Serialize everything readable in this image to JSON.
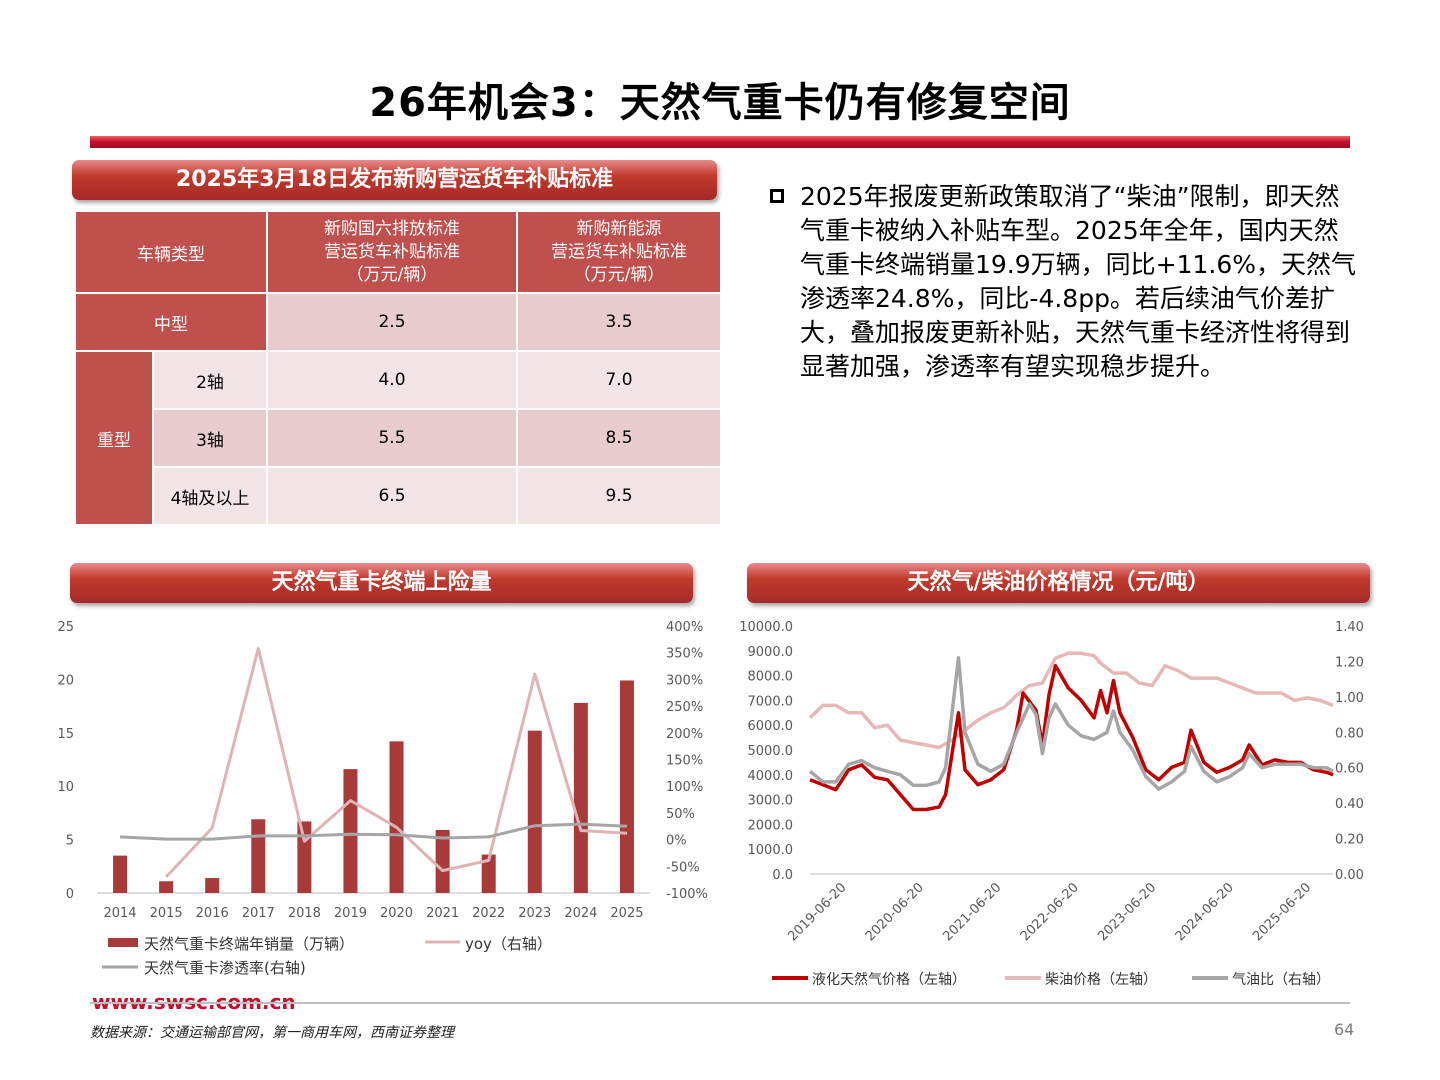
{
  "title": "26年机会3：天然气重卡仍有修复空间",
  "table_section": {
    "title": "2025年3月18日发布新购营运货车补贴标准",
    "header": {
      "col1": "车辆类型",
      "col2": [
        "新购国六排放标准",
        "营运货车补贴标准",
        "（万元/辆）"
      ],
      "col3": [
        "新购新能源",
        "营运货车补贴标准",
        "（万元/辆）"
      ]
    },
    "medium": {
      "label": "中型",
      "v1": "2.5",
      "v2": "3.5"
    },
    "heavy": {
      "label": "重型",
      "rows": [
        {
          "axle": "2轴",
          "v1": "4.0",
          "v2": "7.0"
        },
        {
          "axle": "3轴",
          "v1": "5.5",
          "v2": "8.5"
        },
        {
          "axle": "4轴及以上",
          "v1": "6.5",
          "v2": "9.5"
        }
      ]
    }
  },
  "bullet_text": "2025年报废更新政策取消了“柴油”限制，即天然气重卡被纳入补贴车型。2025年全年，国内天然气重卡终端销量19.9万辆，同比+11.6%，天然气渗透率24.8%，同比-4.8pp。若后续油气价差扩大，叠加报废更新补贴，天然气重卡经济性将得到显著加强，渗透率有望实现稳步提升。",
  "left_chart_title": "天然气重卡终端上险量",
  "right_chart_title": "天然气/柴油价格情况（元/吨）",
  "chart_data": [
    {
      "type": "bar",
      "categories": [
        "2014",
        "2015",
        "2016",
        "2017",
        "2018",
        "2019",
        "2020",
        "2021",
        "2022",
        "2023",
        "2024",
        "2025"
      ],
      "series": [
        {
          "name": "天然气重卡终端年销量（万辆）",
          "axis": "left",
          "type": "bar",
          "color": "#a93a3a",
          "values": [
            3.5,
            1.1,
            1.4,
            6.9,
            6.7,
            11.6,
            14.2,
            5.9,
            3.6,
            15.2,
            17.8,
            19.9
          ]
        },
        {
          "name": "yoy（右轴）",
          "axis": "right",
          "type": "line",
          "color": "#e0b4b4",
          "values": [
            null,
            -70,
            22,
            358,
            -3,
            73,
            23,
            -58,
            -39,
            310,
            17,
            12
          ]
        },
        {
          "name": "天然气重卡渗透率(右轴)",
          "axis": "right",
          "type": "line",
          "color": "#a6a6a6",
          "values": [
            5,
            1,
            1,
            7,
            7,
            10,
            9,
            3,
            5,
            26,
            29,
            25
          ]
        }
      ],
      "ylim_left": [
        0,
        25
      ],
      "ylim_right": [
        -100,
        400
      ],
      "yticks_left": [
        "0",
        "5",
        "10",
        "15",
        "20",
        "25"
      ],
      "yticks_right": [
        "-100%",
        "-50%",
        "0%",
        "50%",
        "100%",
        "150%",
        "200%",
        "250%",
        "300%",
        "350%",
        "400%"
      ]
    },
    {
      "type": "line",
      "x_ticks": [
        "2019-06-20",
        "2020-06-20",
        "2021-06-20",
        "2022-06-20",
        "2023-06-20",
        "2024-06-20",
        "2025-06-20"
      ],
      "x_range": [
        "2019-01",
        "2025-10"
      ],
      "ylim_left": [
        0,
        10000
      ],
      "ylim_right": [
        0,
        1.4
      ],
      "yticks_left": [
        "0.0",
        "1000.0",
        "2000.0",
        "3000.0",
        "4000.0",
        "5000.0",
        "6000.0",
        "7000.0",
        "8000.0",
        "9000.0",
        "10000.0"
      ],
      "yticks_right": [
        "0.00",
        "0.20",
        "0.40",
        "0.60",
        "0.80",
        "1.00",
        "1.20",
        "1.40"
      ],
      "series": [
        {
          "name": "液化天然气价格（左轴）",
          "axis": "left",
          "color": "#c00000",
          "points": [
            [
              "2019-01",
              3800
            ],
            [
              "2019-03",
              3600
            ],
            [
              "2019-05",
              3400
            ],
            [
              "2019-07",
              4200
            ],
            [
              "2019-09",
              4400
            ],
            [
              "2019-11",
              3900
            ],
            [
              "2020-01",
              3800
            ],
            [
              "2020-03",
              3200
            ],
            [
              "2020-05",
              2600
            ],
            [
              "2020-07",
              2600
            ],
            [
              "2020-09",
              2700
            ],
            [
              "2020-10",
              3200
            ],
            [
              "2020-12",
              6500
            ],
            [
              "2021-01",
              4200
            ],
            [
              "2021-03",
              3600
            ],
            [
              "2021-05",
              3800
            ],
            [
              "2021-07",
              4200
            ],
            [
              "2021-09",
              5800
            ],
            [
              "2021-10",
              7300
            ],
            [
              "2021-12",
              6600
            ],
            [
              "2022-01",
              5200
            ],
            [
              "2022-02",
              7200
            ],
            [
              "2022-03",
              8400
            ],
            [
              "2022-05",
              7500
            ],
            [
              "2022-07",
              7000
            ],
            [
              "2022-09",
              6300
            ],
            [
              "2022-10",
              7400
            ],
            [
              "2022-11",
              6500
            ],
            [
              "2022-12",
              7800
            ],
            [
              "2023-01",
              6500
            ],
            [
              "2023-03",
              5500
            ],
            [
              "2023-05",
              4200
            ],
            [
              "2023-07",
              3800
            ],
            [
              "2023-09",
              4300
            ],
            [
              "2023-11",
              4500
            ],
            [
              "2023-12",
              5800
            ],
            [
              "2024-02",
              4500
            ],
            [
              "2024-04",
              4100
            ],
            [
              "2024-06",
              4300
            ],
            [
              "2024-08",
              4600
            ],
            [
              "2024-09",
              5200
            ],
            [
              "2024-11",
              4400
            ],
            [
              "2025-01",
              4600
            ],
            [
              "2025-03",
              4500
            ],
            [
              "2025-05",
              4500
            ],
            [
              "2025-07",
              4200
            ],
            [
              "2025-09",
              4100
            ],
            [
              "2025-10",
              4000
            ]
          ]
        },
        {
          "name": "柴油价格（左轴）",
          "axis": "left",
          "color": "#e6b9b8",
          "points": [
            [
              "2019-01",
              6300
            ],
            [
              "2019-03",
              6800
            ],
            [
              "2019-05",
              6800
            ],
            [
              "2019-07",
              6500
            ],
            [
              "2019-09",
              6500
            ],
            [
              "2019-11",
              5900
            ],
            [
              "2020-01",
              6000
            ],
            [
              "2020-03",
              5400
            ],
            [
              "2020-05",
              5300
            ],
            [
              "2020-07",
              5200
            ],
            [
              "2020-09",
              5100
            ],
            [
              "2020-11",
              5400
            ],
            [
              "2021-01",
              5800
            ],
            [
              "2021-03",
              6200
            ],
            [
              "2021-05",
              6500
            ],
            [
              "2021-07",
              6700
            ],
            [
              "2021-09",
              7200
            ],
            [
              "2021-11",
              7600
            ],
            [
              "2022-01",
              7700
            ],
            [
              "2022-03",
              8700
            ],
            [
              "2022-05",
              8900
            ],
            [
              "2022-07",
              8900
            ],
            [
              "2022-09",
              8800
            ],
            [
              "2022-10",
              8500
            ],
            [
              "2022-12",
              8100
            ],
            [
              "2023-02",
              8100
            ],
            [
              "2023-04",
              7700
            ],
            [
              "2023-06",
              7600
            ],
            [
              "2023-08",
              8400
            ],
            [
              "2023-10",
              8200
            ],
            [
              "2023-12",
              7900
            ],
            [
              "2024-02",
              7900
            ],
            [
              "2024-04",
              7900
            ],
            [
              "2024-06",
              7700
            ],
            [
              "2024-08",
              7500
            ],
            [
              "2024-10",
              7300
            ],
            [
              "2024-12",
              7300
            ],
            [
              "2025-02",
              7300
            ],
            [
              "2025-04",
              7000
            ],
            [
              "2025-06",
              7100
            ],
            [
              "2025-08",
              7000
            ],
            [
              "2025-10",
              6800
            ]
          ]
        },
        {
          "name": "气油比（右轴）",
          "axis": "right",
          "color": "#a6a6a6",
          "points": [
            [
              "2019-01",
              0.58
            ],
            [
              "2019-03",
              0.52
            ],
            [
              "2019-05",
              0.52
            ],
            [
              "2019-07",
              0.62
            ],
            [
              "2019-09",
              0.64
            ],
            [
              "2019-11",
              0.6
            ],
            [
              "2020-01",
              0.58
            ],
            [
              "2020-03",
              0.56
            ],
            [
              "2020-05",
              0.5
            ],
            [
              "2020-07",
              0.5
            ],
            [
              "2020-09",
              0.52
            ],
            [
              "2020-10",
              0.6
            ],
            [
              "2020-12",
              1.22
            ],
            [
              "2021-01",
              0.8
            ],
            [
              "2021-03",
              0.62
            ],
            [
              "2021-05",
              0.58
            ],
            [
              "2021-07",
              0.62
            ],
            [
              "2021-09",
              0.8
            ],
            [
              "2021-11",
              0.96
            ],
            [
              "2021-12",
              0.9
            ],
            [
              "2022-01",
              0.68
            ],
            [
              "2022-02",
              0.88
            ],
            [
              "2022-03",
              0.96
            ],
            [
              "2022-05",
              0.84
            ],
            [
              "2022-07",
              0.78
            ],
            [
              "2022-09",
              0.76
            ],
            [
              "2022-11",
              0.8
            ],
            [
              "2022-12",
              0.92
            ],
            [
              "2023-01",
              0.8
            ],
            [
              "2023-03",
              0.7
            ],
            [
              "2023-05",
              0.55
            ],
            [
              "2023-07",
              0.48
            ],
            [
              "2023-09",
              0.52
            ],
            [
              "2023-11",
              0.58
            ],
            [
              "2023-12",
              0.72
            ],
            [
              "2024-02",
              0.58
            ],
            [
              "2024-04",
              0.52
            ],
            [
              "2024-06",
              0.55
            ],
            [
              "2024-08",
              0.6
            ],
            [
              "2024-09",
              0.68
            ],
            [
              "2024-11",
              0.6
            ],
            [
              "2025-01",
              0.62
            ],
            [
              "2025-03",
              0.62
            ],
            [
              "2025-05",
              0.62
            ],
            [
              "2025-07",
              0.6
            ],
            [
              "2025-09",
              0.6
            ],
            [
              "2025-10",
              0.58
            ]
          ]
        }
      ]
    }
  ],
  "left_legend": [
    "天然气重卡终端年销量（万辆）",
    "yoy（右轴）",
    "天然气重卡渗透率(右轴)"
  ],
  "right_legend": [
    "液化天然气价格（左轴）",
    "柴油价格（左轴）",
    "气油比（右轴）"
  ],
  "footer": {
    "site": "www.swsc.com.cn",
    "source": "数据来源：交通运输部官网，第一商用车网，西南证券整理",
    "page": "64"
  }
}
